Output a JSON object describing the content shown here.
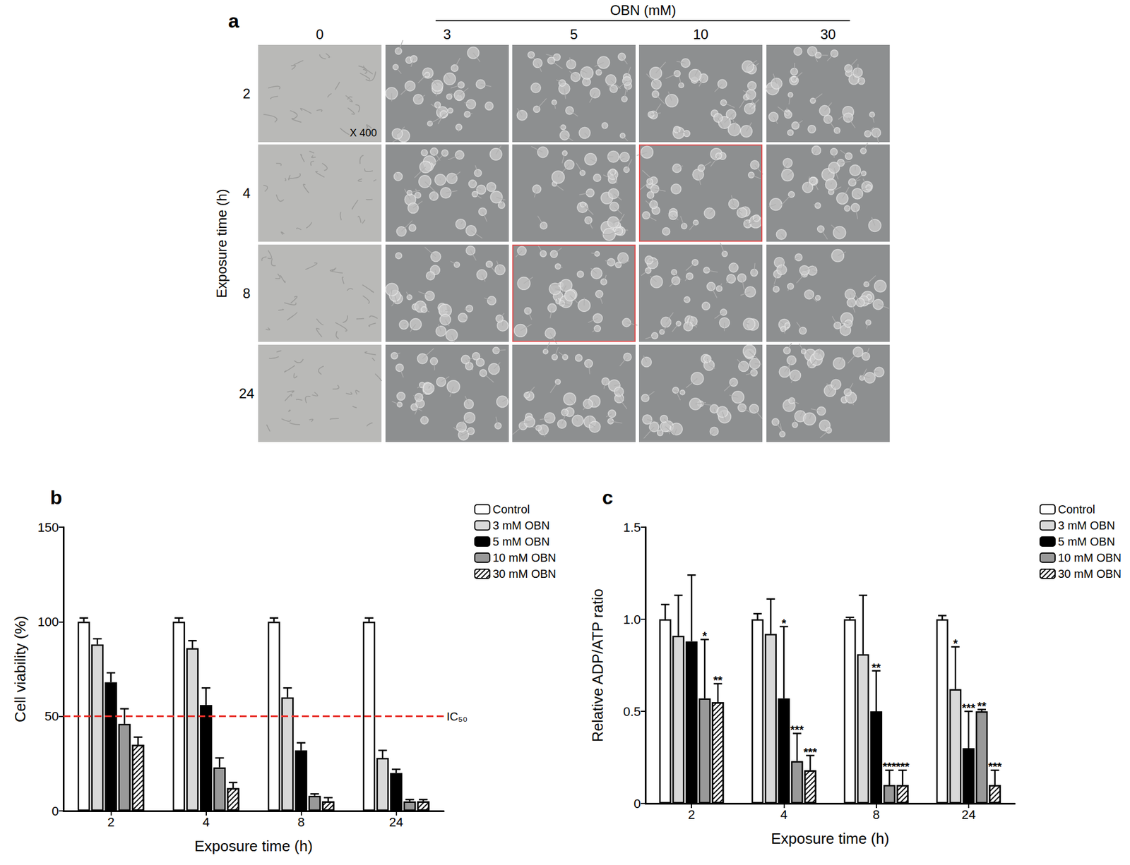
{
  "panel_a": {
    "label": "a",
    "column_header": "OBN (mM)",
    "columns": [
      0,
      3,
      5,
      10,
      30
    ],
    "row_header": "Exposure time (h)",
    "rows": [
      2,
      4,
      8,
      24
    ],
    "magnification": "X 400",
    "highlighted_cells": [
      {
        "row": 4,
        "column": 10
      },
      {
        "row": 8,
        "column": 5
      }
    ]
  },
  "chart_data": [
    {
      "type": "bar",
      "title": "b",
      "x_label": "Exposure time (h)",
      "y_label": "Cell viability (%)",
      "categories": [
        "2",
        "4",
        "8",
        "24"
      ],
      "ylim": [
        0,
        150
      ],
      "yticks": [
        0,
        50,
        100,
        150
      ],
      "grid": false,
      "legend": "upper right",
      "reference_line": {
        "value": 50,
        "label": "IC₅₀",
        "color": "#e8302a"
      },
      "series": [
        {
          "name": "Control",
          "color": "#ffffff",
          "values": [
            100,
            100,
            100,
            100
          ],
          "errors": [
            2,
            2,
            2,
            2
          ]
        },
        {
          "name": "3 mM OBN",
          "color": "#d9d9d9",
          "values": [
            88,
            86,
            60,
            28
          ],
          "errors": [
            3,
            4,
            5,
            4
          ]
        },
        {
          "name": "5 mM OBN",
          "color": "#000000",
          "values": [
            68,
            56,
            32,
            20
          ],
          "errors": [
            5,
            9,
            4,
            2
          ]
        },
        {
          "name": "10 mM OBN",
          "color": "#999999",
          "values": [
            46,
            23,
            8,
            5
          ],
          "errors": [
            8,
            5,
            1,
            1
          ]
        },
        {
          "name": "30 mM OBN",
          "color": "#ffffff",
          "marker": "hatched",
          "values": [
            35,
            12,
            5,
            5
          ],
          "errors": [
            4,
            3,
            2,
            1
          ]
        }
      ]
    },
    {
      "type": "bar",
      "title": "c",
      "x_label": "Exposure time (h)",
      "y_label": "Relative ADP/ATP ratio",
      "categories": [
        "2",
        "4",
        "8",
        "24"
      ],
      "ylim": [
        0,
        1.5
      ],
      "yticks": [
        0,
        0.5,
        {
          "value": 1,
          "label": "1.0"
        },
        1.5
      ],
      "grid": false,
      "legend": "upper right",
      "series": [
        {
          "name": "Control",
          "color": "#ffffff",
          "values": [
            1.0,
            1.0,
            1.0,
            1.0
          ],
          "errors": [
            0.08,
            0.03,
            0.01,
            0.02
          ],
          "significance": [
            null,
            null,
            null,
            null
          ]
        },
        {
          "name": "3 mM OBN",
          "color": "#d9d9d9",
          "values": [
            0.91,
            0.92,
            0.81,
            0.62
          ],
          "errors": [
            0.22,
            0.19,
            0.32,
            0.23
          ],
          "significance": [
            null,
            null,
            null,
            "*"
          ]
        },
        {
          "name": "5 mM OBN",
          "color": "#000000",
          "values": [
            0.88,
            0.57,
            0.5,
            0.3
          ],
          "errors": [
            0.36,
            0.39,
            0.22,
            0.2
          ],
          "significance": [
            null,
            "*",
            "**",
            "***"
          ]
        },
        {
          "name": "10 mM OBN",
          "color": "#999999",
          "values": [
            0.57,
            0.23,
            0.1,
            0.5
          ],
          "errors": [
            0.32,
            0.15,
            0.08,
            0.01
          ],
          "significance": [
            "*",
            "***",
            "***",
            "**"
          ]
        },
        {
          "name": "30 mM OBN",
          "color": "#ffffff",
          "marker": "hatched",
          "values": [
            0.55,
            0.18,
            0.1,
            0.1
          ],
          "errors": [
            0.1,
            0.08,
            0.08,
            0.08
          ],
          "significance": [
            "**",
            "***",
            "***",
            "***"
          ]
        }
      ]
    }
  ]
}
